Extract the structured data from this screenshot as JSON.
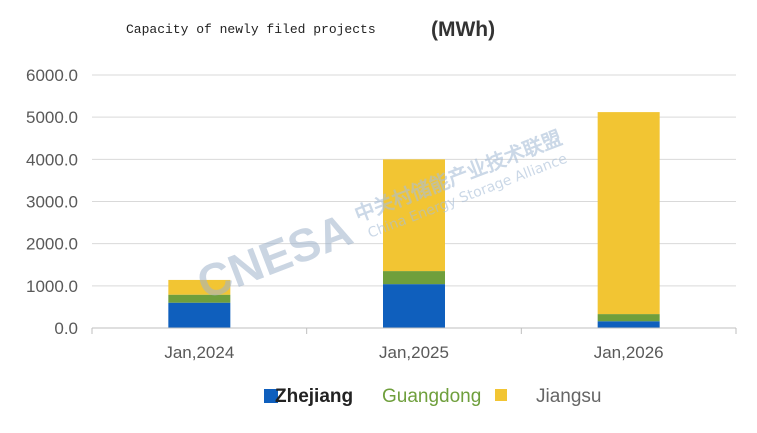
{
  "chart_data": {
    "type": "bar",
    "stacked": true,
    "title": "Capacity of newly filed projects",
    "title_unit": "(MWh)",
    "categories": [
      "Jan,2024",
      "Jan,2025",
      "Jan,2026"
    ],
    "series": [
      {
        "name": "Zhejiang",
        "color": "#0f5fbd",
        "values": [
          600,
          1040,
          160
        ]
      },
      {
        "name": "Guangdong",
        "color": "#6f9f3c",
        "values": [
          190,
          310,
          170
        ]
      },
      {
        "name": "Jiangsu",
        "color": "#f2c533",
        "values": [
          350,
          2650,
          4790
        ]
      }
    ],
    "ylim": [
      0,
      6000
    ],
    "yticks": [
      "0.0",
      "1000.0",
      "2000.0",
      "3000.0",
      "4000.0",
      "5000.0",
      "6000.0"
    ],
    "legend_position": "bottom",
    "grid": true
  },
  "watermark": {
    "logo": "CNESA",
    "cn": "中关村储能产业技术联盟",
    "en": "China Energy Storage Alliance"
  }
}
